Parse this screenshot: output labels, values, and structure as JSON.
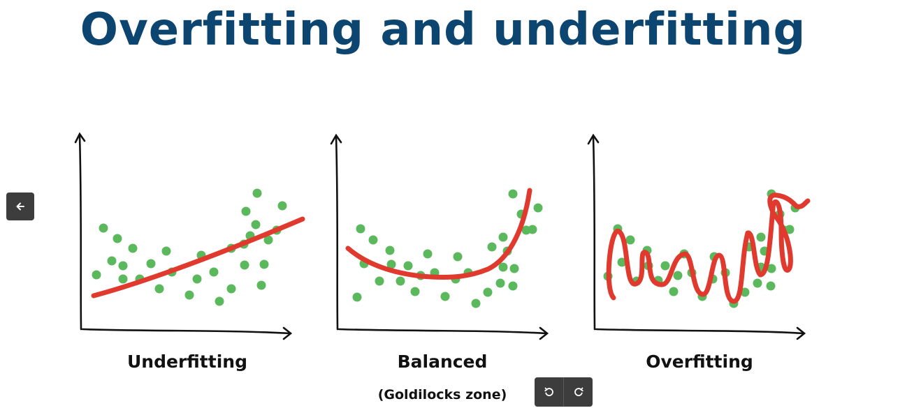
{
  "slide": {
    "title": "Overfitting and underfitting",
    "panels": [
      {
        "label": "Underfitting",
        "sublabel": ""
      },
      {
        "label": "Balanced",
        "sublabel": "(Goldilocks zone)"
      },
      {
        "label": "Overfitting",
        "sublabel": ""
      }
    ],
    "colors": {
      "title": "#0c4670",
      "points": "#5cb85c",
      "fit_line": "#e03a2f",
      "axes": "#111111"
    }
  },
  "toolbar": {
    "back_icon": "arrow-left-icon",
    "rotate_left_icon": "rotate-left-icon",
    "rotate_right_icon": "rotate-right-icon"
  }
}
